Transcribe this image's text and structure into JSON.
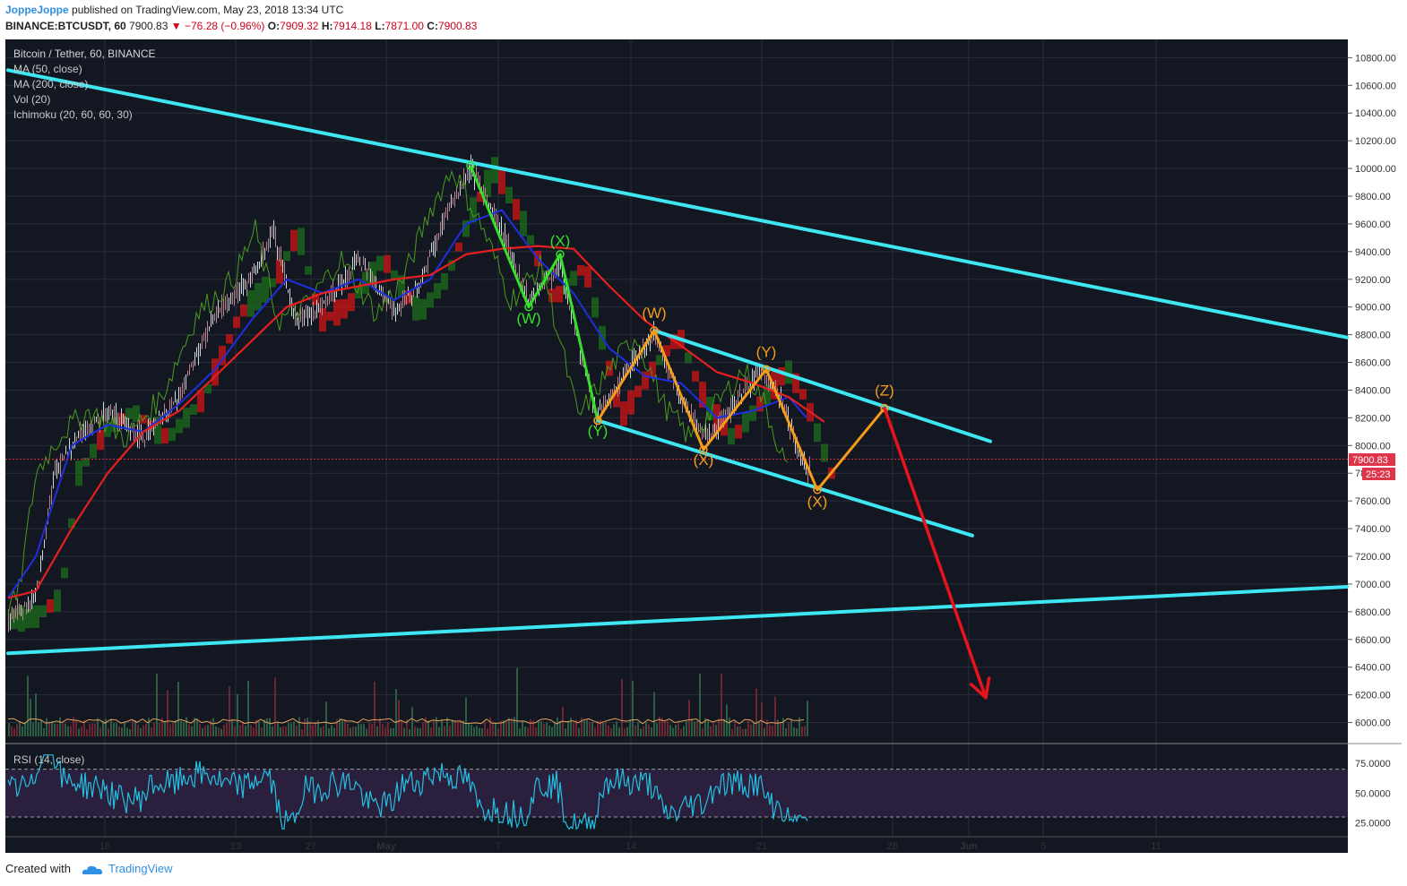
{
  "header": {
    "user": "JoppeJoppe",
    "published": "published on TradingView.com, May 23, 2018 13:34 UTC",
    "symbol": "BINANCE:BTCUSDT, 60",
    "last": "7900.83",
    "change": "−76.28 (−0.96%)",
    "o_label": "O:",
    "o_value": "7909.32",
    "h_label": "H:",
    "h_value": "7914.18",
    "l_label": "L:",
    "l_value": "7871.00",
    "c_label": "C:",
    "c_value": "7900.83"
  },
  "legend": {
    "title": "Bitcoin / Tether, 60, BINANCE",
    "items": [
      "MA (50, close)",
      "MA (200, close)",
      "Vol (20)",
      "Ichimoku (20, 60, 60, 30)"
    ]
  },
  "colors": {
    "bg": "#131722",
    "grid": "#2a2e39",
    "trend": "#3ee6f2",
    "ma200": "#e81f1f",
    "ma50": "#1e2fe0",
    "lagging": "#4a9a1c",
    "green_wave": "#35e02a",
    "orange_wave": "#f59c1a",
    "arrow": "#e8141c",
    "rsi": "#27bfe0",
    "cloud_green": "#1c6e1c",
    "cloud_red": "#d01616"
  },
  "chart_data": {
    "type": "line",
    "ylim": [
      5900,
      10880
    ],
    "y_ticks": [
      "10800.00",
      "10600.00",
      "10400.00",
      "10200.00",
      "10000.00",
      "9800.00",
      "9600.00",
      "9400.00",
      "9200.00",
      "9000.00",
      "8800.00",
      "8600.00",
      "8400.00",
      "8200.00",
      "8000.00",
      "7800.00",
      "7600.00",
      "7400.00",
      "7200.00",
      "7000.00",
      "6800.00",
      "6600.00",
      "6400.00",
      "6200.00",
      "6000.00"
    ],
    "x_ticks": [
      "16",
      "23",
      "27",
      "May",
      "7",
      "14",
      "21",
      "28",
      "Jun",
      "5",
      "11"
    ],
    "last_price": "7900.83",
    "countdown": "25:23",
    "price_path": [
      [
        9,
        6750
      ],
      [
        40,
        6900
      ],
      [
        60,
        7800
      ],
      [
        90,
        8100
      ],
      [
        120,
        8250
      ],
      [
        160,
        8050
      ],
      [
        200,
        8350
      ],
      [
        240,
        8950
      ],
      [
        280,
        9200
      ],
      [
        305,
        9550
      ],
      [
        330,
        8900
      ],
      [
        360,
        9000
      ],
      [
        400,
        9350
      ],
      [
        440,
        8950
      ],
      [
        470,
        9200
      ],
      [
        500,
        9700
      ],
      [
        525,
        10000
      ],
      [
        560,
        9550
      ],
      [
        590,
        9050
      ],
      [
        625,
        9300
      ],
      [
        665,
        8200
      ],
      [
        700,
        8550
      ],
      [
        730,
        8800
      ],
      [
        760,
        8300
      ],
      [
        790,
        8050
      ],
      [
        820,
        8300
      ],
      [
        850,
        8550
      ],
      [
        870,
        8350
      ],
      [
        900,
        7800
      ],
      [
        904,
        7900
      ]
    ],
    "ma200": [
      [
        9,
        6900
      ],
      [
        40,
        6950
      ],
      [
        80,
        7400
      ],
      [
        120,
        7800
      ],
      [
        160,
        8100
      ],
      [
        200,
        8250
      ],
      [
        240,
        8500
      ],
      [
        280,
        8750
      ],
      [
        320,
        9000
      ],
      [
        360,
        9100
      ],
      [
        400,
        9150
      ],
      [
        440,
        9200
      ],
      [
        480,
        9230
      ],
      [
        520,
        9380
      ],
      [
        560,
        9420
      ],
      [
        600,
        9440
      ],
      [
        640,
        9420
      ],
      [
        680,
        9150
      ],
      [
        720,
        8900
      ],
      [
        760,
        8720
      ],
      [
        800,
        8530
      ],
      [
        840,
        8450
      ],
      [
        880,
        8350
      ],
      [
        920,
        8170
      ]
    ],
    "ma50": [
      [
        9,
        6900
      ],
      [
        40,
        7200
      ],
      [
        80,
        8000
      ],
      [
        120,
        8150
      ],
      [
        160,
        8100
      ],
      [
        200,
        8300
      ],
      [
        240,
        8550
      ],
      [
        280,
        8900
      ],
      [
        320,
        9200
      ],
      [
        360,
        9100
      ],
      [
        400,
        9200
      ],
      [
        440,
        9050
      ],
      [
        480,
        9200
      ],
      [
        520,
        9600
      ],
      [
        560,
        9700
      ],
      [
        600,
        9350
      ],
      [
        640,
        9100
      ],
      [
        680,
        8700
      ],
      [
        720,
        8500
      ],
      [
        760,
        8450
      ],
      [
        800,
        8200
      ],
      [
        840,
        8250
      ],
      [
        880,
        8350
      ],
      [
        900,
        8200
      ]
    ],
    "rsi": {
      "label": "RSI (14, close)",
      "ylim": [
        15,
        90
      ],
      "ticks": [
        "75.0000",
        "50.0000",
        "25.0000"
      ],
      "upper": 70,
      "lower": 30,
      "current": 30
    },
    "trendlines": [
      [
        [
          9,
          10710
        ],
        [
          1503,
          8780
        ]
      ],
      [
        [
          9,
          6500
        ],
        [
          1503,
          6980
        ]
      ],
      [
        [
          730,
          8830
        ],
        [
          1105,
          8030
        ]
      ],
      [
        [
          667,
          8180
        ],
        [
          1085,
          7350
        ]
      ]
    ],
    "green_wave": [
      [
        525,
        10020
      ],
      [
        590,
        9000
      ],
      [
        625,
        9380
      ],
      [
        667,
        8180
      ]
    ],
    "green_labels": [
      {
        "text": "(X)",
        "x": 625,
        "y": 9440
      },
      {
        "text": "(W)",
        "x": 590,
        "y": 8880
      },
      {
        "text": "(Y)",
        "x": 667,
        "y": 8070
      }
    ],
    "orange_wave": [
      [
        667,
        8180
      ],
      [
        730,
        8830
      ],
      [
        785,
        7970
      ],
      [
        855,
        8550
      ],
      [
        912,
        7680
      ],
      [
        987,
        8270
      ]
    ],
    "orange_labels": [
      {
        "text": "(W)",
        "x": 730,
        "y": 8920
      },
      {
        "text": "(X)",
        "x": 785,
        "y": 7860
      },
      {
        "text": "(Y)",
        "x": 855,
        "y": 8640
      },
      {
        "text": "(X)",
        "x": 912,
        "y": 7560
      },
      {
        "text": "(Z)",
        "x": 987,
        "y": 8360
      }
    ],
    "projection": [
      [
        987,
        8270
      ],
      [
        1100,
        6180
      ]
    ]
  },
  "footer": {
    "created_with": "Created with",
    "brand": "TradingView"
  }
}
